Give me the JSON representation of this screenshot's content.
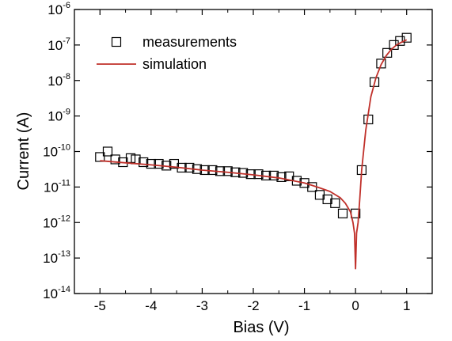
{
  "chart_data": {
    "type": "scatter",
    "title": "",
    "xlabel": "Bias (V)",
    "ylabel": "Current (A)",
    "xlim": [
      -5.5,
      1.5
    ],
    "ylim": [
      1e-14,
      1e-06
    ],
    "yscale": "log",
    "grid": false,
    "legend_position": "top-left",
    "xticks": [
      "-5",
      "-4",
      "-3",
      "-2",
      "-1",
      "0",
      "1"
    ],
    "yticks": [
      {
        "base": "10",
        "exp": "-14"
      },
      {
        "base": "10",
        "exp": "-13"
      },
      {
        "base": "10",
        "exp": "-12"
      },
      {
        "base": "10",
        "exp": "-11"
      },
      {
        "base": "10",
        "exp": "-10"
      },
      {
        "base": "10",
        "exp": "-9"
      },
      {
        "base": "10",
        "exp": "-8"
      },
      {
        "base": "10",
        "exp": "-7"
      },
      {
        "base": "10",
        "exp": "-6"
      }
    ],
    "series": [
      {
        "name": "measurements",
        "marker": "open-square",
        "color": "#000000",
        "points": [
          [
            -5.0,
            7e-11
          ],
          [
            -4.85,
            1e-10
          ],
          [
            -4.7,
            6e-11
          ],
          [
            -4.55,
            5e-11
          ],
          [
            -4.4,
            6.5e-11
          ],
          [
            -4.3,
            6e-11
          ],
          [
            -4.15,
            5e-11
          ],
          [
            -4.0,
            4.5e-11
          ],
          [
            -3.85,
            4.5e-11
          ],
          [
            -3.7,
            4e-11
          ],
          [
            -3.55,
            4.5e-11
          ],
          [
            -3.4,
            3.5e-11
          ],
          [
            -3.25,
            3.5e-11
          ],
          [
            -3.1,
            3.2e-11
          ],
          [
            -2.95,
            3e-11
          ],
          [
            -2.8,
            3e-11
          ],
          [
            -2.65,
            2.8e-11
          ],
          [
            -2.5,
            2.8e-11
          ],
          [
            -2.35,
            2.6e-11
          ],
          [
            -2.2,
            2.5e-11
          ],
          [
            -2.05,
            2.3e-11
          ],
          [
            -1.9,
            2.3e-11
          ],
          [
            -1.75,
            2.1e-11
          ],
          [
            -1.6,
            2.1e-11
          ],
          [
            -1.45,
            1.9e-11
          ],
          [
            -1.3,
            2e-11
          ],
          [
            -1.15,
            1.5e-11
          ],
          [
            -1.0,
            1.3e-11
          ],
          [
            -0.85,
            1e-11
          ],
          [
            -0.7,
            6e-12
          ],
          [
            -0.55,
            4.5e-12
          ],
          [
            -0.4,
            3.5e-12
          ],
          [
            -0.25,
            1.8e-12
          ],
          [
            0.0,
            1.8e-12
          ],
          [
            0.12,
            3e-11
          ],
          [
            0.25,
            8e-10
          ],
          [
            0.37,
            9e-09
          ],
          [
            0.5,
            3e-08
          ],
          [
            0.62,
            6e-08
          ],
          [
            0.75,
            1e-07
          ],
          [
            0.87,
            1.3e-07
          ],
          [
            1.0,
            1.6e-07
          ]
        ]
      },
      {
        "name": "simulation",
        "marker": "line",
        "color": "#c0302a",
        "points": [
          [
            -5.0,
            5.5e-11
          ],
          [
            -4.5,
            4.8e-11
          ],
          [
            -4.0,
            4.2e-11
          ],
          [
            -3.5,
            3.6e-11
          ],
          [
            -3.0,
            3e-11
          ],
          [
            -2.5,
            2.6e-11
          ],
          [
            -2.0,
            2.2e-11
          ],
          [
            -1.5,
            1.8e-11
          ],
          [
            -1.0,
            1.3e-11
          ],
          [
            -0.75,
            1e-11
          ],
          [
            -0.5,
            7.5e-12
          ],
          [
            -0.3,
            5e-12
          ],
          [
            -0.2,
            3.5e-12
          ],
          [
            -0.1,
            2e-12
          ],
          [
            -0.05,
            1e-12
          ],
          [
            -0.02,
            5e-13
          ],
          [
            0.0,
            5e-14
          ],
          [
            0.02,
            5e-13
          ],
          [
            0.05,
            1e-12
          ],
          [
            0.08,
            4e-12
          ],
          [
            0.12,
            3e-11
          ],
          [
            0.2,
            4e-10
          ],
          [
            0.3,
            3.5e-09
          ],
          [
            0.4,
            1.2e-08
          ],
          [
            0.5,
            2.8e-08
          ],
          [
            0.6,
            5e-08
          ],
          [
            0.7,
            7.5e-08
          ],
          [
            0.8,
            1e-07
          ],
          [
            0.9,
            1.2e-07
          ],
          [
            1.0,
            1.4e-07
          ]
        ]
      }
    ]
  }
}
